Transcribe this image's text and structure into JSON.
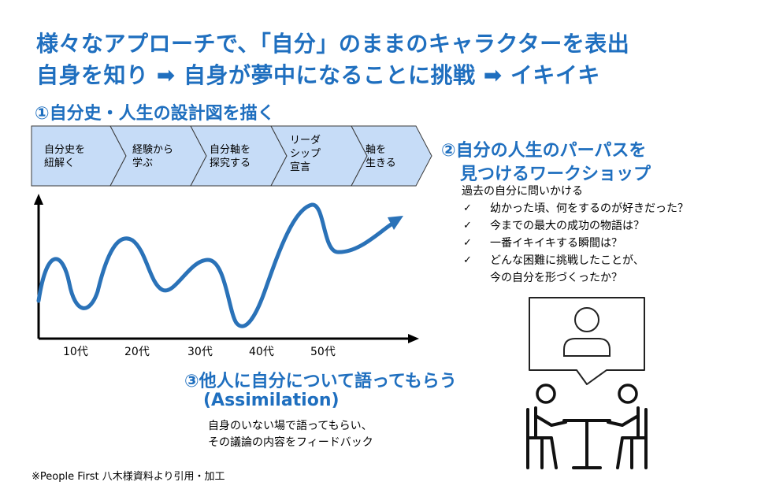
{
  "title": {
    "line1": "様々なアプローチで、「自分」のままのキャラクターを表出",
    "line2": "自身を知り ➡ 自身が夢中になることに挑戦 ➡ イキイキ"
  },
  "section1": {
    "heading": "①自分史・人生の設計図を描く",
    "steps": [
      "自分史を\n紐解く",
      "経験から\n学ぶ",
      "自分軸を\n探究する",
      "リーダ\nシップ\n宣言",
      "軸を\n生きる"
    ],
    "ages": [
      "10代",
      "20代",
      "30代",
      "40代",
      "50代"
    ]
  },
  "section2": {
    "heading_line1": "②自分の人生のパーパスを",
    "heading_line2": "見つけるワークショップ",
    "intro": "過去の自分に問いかける",
    "check_mark": "✓",
    "questions": [
      "幼かった頃、何をするのが好きだった？",
      "今までの最大の成功の物語は？",
      "一番イキイキする瞬間は？",
      "どんな困難に挑戦したことが、"
    ],
    "question_continuation": "今の自分を形づくったか？"
  },
  "section3": {
    "heading_line1": "③他人に自分について語ってもらう",
    "heading_line2": "(Assimilation)",
    "desc_line1": "自身のいない場で語ってもらい、",
    "desc_line2": "その議論の内容をフィードバック"
  },
  "footnote": "※People First 八木様資料より引用・加工",
  "colors": {
    "accent": "#1f6fbf",
    "curve": "#2a72b8",
    "chevron_fill": "#c6dcf7",
    "chevron_stroke": "#3a3a3a"
  },
  "icons": [
    "person-icon",
    "people-at-table-icon",
    "speech-bubble-icon"
  ]
}
